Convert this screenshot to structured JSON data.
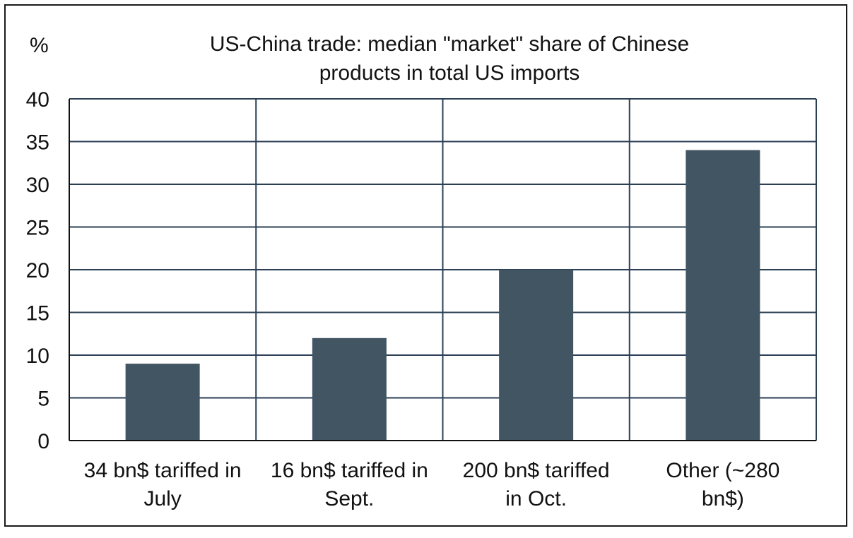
{
  "chart_data": {
    "type": "bar",
    "unit_label": "%",
    "title_lines": [
      "US-China trade: median \"market\" share of Chinese",
      "products in total US imports"
    ],
    "categories": [
      [
        "34 bn$ tariffed in",
        "July"
      ],
      [
        "16 bn$ tariffed in",
        "Sept."
      ],
      [
        "200 bn$ tariffed",
        "in Oct."
      ],
      [
        "Other (~280",
        "bn$)"
      ]
    ],
    "values": [
      9,
      12,
      20,
      34
    ],
    "ylim": [
      0,
      40
    ],
    "yticks": [
      0,
      5,
      10,
      15,
      20,
      25,
      30,
      35,
      40
    ],
    "grid": true,
    "bar_color": "#425563",
    "grid_color": "#2b3f55",
    "axis_color": "#111111"
  }
}
